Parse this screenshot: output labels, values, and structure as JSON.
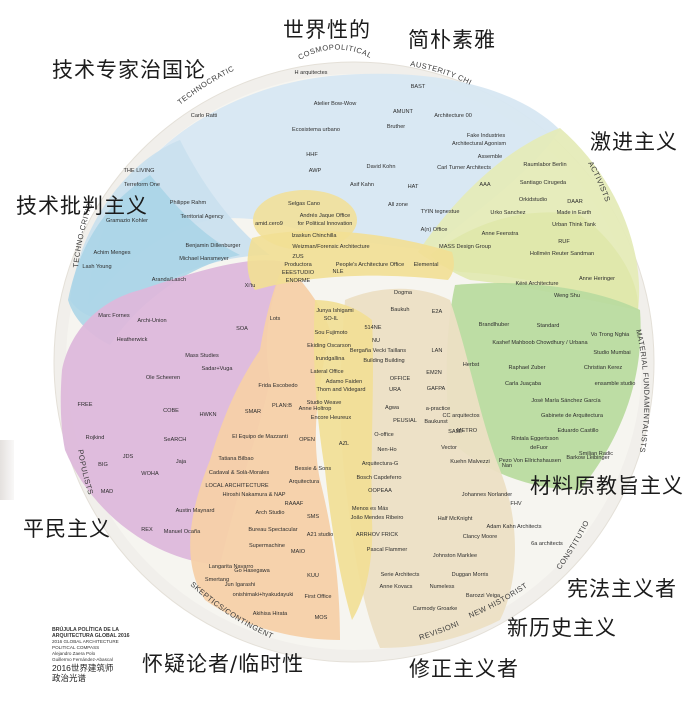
{
  "title_credit": {
    "lines": [
      "BRÚJULA POLÍTICA DE LA",
      "ARQUITECTURA GLOBAL 2016",
      "2016 GLOBAL ARCHITECTURE",
      "POLITICAL COMPASS",
      "Alejandro Zaera Polo",
      "Guillermo Fernández-Abascal"
    ],
    "cn_lines": [
      "2016世界建筑师",
      "政治光谱"
    ]
  },
  "overlay_labels": {
    "cosmopolitan": "世界性的",
    "austerity": "简朴素雅",
    "technocratic": "技术专家治国论",
    "activists": "激进主义",
    "techno_critical": "技术批判主义",
    "material": "材料原教旨主义",
    "populists": "平民主义",
    "constitutionalists": "宪法主义者",
    "new_historists": "新历史主义",
    "skeptics": "怀疑论者/临时性",
    "revisionists": "修正主义者"
  },
  "ring_labels": [
    {
      "key": "cosmo",
      "text": "COSMOPOLITICAL"
    },
    {
      "key": "aust",
      "text": "AUSTERITY CHIC"
    },
    {
      "key": "techno",
      "text": "TECHNOCRATIC"
    },
    {
      "key": "act",
      "text": "ACTIVISTS"
    },
    {
      "key": "tcrit",
      "text": "TECHNO-CRITICAL"
    },
    {
      "key": "matf",
      "text": "MATERIAL FUNDAMENTALISTS"
    },
    {
      "key": "pop",
      "text": "POPULISTS"
    },
    {
      "key": "const",
      "text": "CONSTITUTIONALISTS"
    },
    {
      "key": "newh",
      "text": "NEW HISTORISTS"
    },
    {
      "key": "rev",
      "text": "REVISIONISTS"
    },
    {
      "key": "skep",
      "text": "SKEPTICS/CONTINGENT"
    }
  ],
  "regions": {
    "cosmopolitan": {
      "color": "#d7e7f2"
    },
    "technocratic": {
      "color": "#c9e0ee"
    },
    "techno_critical": {
      "color": "#a8d4e6"
    },
    "activists": {
      "color": "#e5ebb8"
    },
    "material": {
      "color": "#b9db9f"
    },
    "populists": {
      "color": "#ddb8db"
    },
    "skeptics": {
      "color": "#f6d0a8"
    },
    "revisionists": {
      "color": "#ecdfc4"
    },
    "center": {
      "color": "#f2df94"
    },
    "disk": {
      "color": "#f4f4ef"
    }
  },
  "firms": [
    {
      "t": "H arquitectes"
    },
    {
      "t": "BAST"
    },
    {
      "t": "Atelier Bow-Wow"
    },
    {
      "t": "AMUNT"
    },
    {
      "t": "Carlo Ratti"
    },
    {
      "t": "Architecture 00"
    },
    {
      "t": "Bruther"
    },
    {
      "t": "Ecosistema urbano"
    },
    {
      "t": "Fake Industries"
    },
    {
      "t": "Architectural Agonism"
    },
    {
      "t": "Assemble"
    },
    {
      "t": "Raumlabor Berlin"
    },
    {
      "t": "HHF"
    },
    {
      "t": "David Kohn"
    },
    {
      "t": "Carl Turner Architects"
    },
    {
      "t": "AWP"
    },
    {
      "t": "Asif Kahn"
    },
    {
      "t": "HAT"
    },
    {
      "t": "AAA"
    },
    {
      "t": "Santiago Cirugeda"
    },
    {
      "t": "THE LIVING"
    },
    {
      "t": "Terreform One"
    },
    {
      "t": "Philippe Rahm"
    },
    {
      "t": "Gramazio Kohler"
    },
    {
      "t": "Territorial Agency"
    },
    {
      "t": "Selgas Cano"
    },
    {
      "t": "Andrés Jaque Office"
    },
    {
      "t": "for Political Innovation"
    },
    {
      "t": "Izaskun Chinchilla"
    },
    {
      "t": "amid.cero9"
    },
    {
      "t": "All zone"
    },
    {
      "t": "TYIN tegnestue"
    },
    {
      "t": "Orkidstudio"
    },
    {
      "t": "DAAR"
    },
    {
      "t": "Urko Sanchez"
    },
    {
      "t": "Made in Earth"
    },
    {
      "t": "Urban Think Tank"
    },
    {
      "t": "A(n) Office"
    },
    {
      "t": "Anne Feenstra"
    },
    {
      "t": "RUF"
    },
    {
      "t": "MASS Design Group"
    },
    {
      "t": "Hollmén Reuter Sandman"
    },
    {
      "t": "Achim Menges"
    },
    {
      "t": "Benjamin Dillenburger"
    },
    {
      "t": "Michael Hansmeyer"
    },
    {
      "t": "Lash Young"
    },
    {
      "t": "Aranda/Lasch"
    },
    {
      "t": "Weizman/Forensic Architecture"
    },
    {
      "t": "ZUS"
    },
    {
      "t": "Productora"
    },
    {
      "t": "EEESTUDIO"
    },
    {
      "t": "ENORME"
    },
    {
      "t": "People's Architecture Office"
    },
    {
      "t": "NLE"
    },
    {
      "t": "Elemental"
    },
    {
      "t": "Marc Fornes"
    },
    {
      "t": "Xi'tu"
    },
    {
      "t": "Lots"
    },
    {
      "t": "Archi-Union"
    },
    {
      "t": "SOA"
    },
    {
      "t": "Heatherwick"
    },
    {
      "t": "Junya Ishigami"
    },
    {
      "t": "Dogma"
    },
    {
      "t": "Baukuh"
    },
    {
      "t": "E2A"
    },
    {
      "t": "Anne Holtrop"
    },
    {
      "t": "Weng Shu"
    },
    {
      "t": "Kéré Architecture"
    },
    {
      "t": "Anne Heringer"
    },
    {
      "t": "Brandlhuber"
    },
    {
      "t": "Standard"
    },
    {
      "t": "Vo Trong Nghia"
    },
    {
      "t": "Kashef Mahboob Chowdhury / Urbana"
    },
    {
      "t": "Studio Mumbai"
    },
    {
      "t": "Herbst"
    },
    {
      "t": "Raphael Zuber"
    },
    {
      "t": "Christian Kerez"
    },
    {
      "t": "Carla Juaçaba"
    },
    {
      "t": "ensamble studio"
    },
    {
      "t": "José María Sánchez García"
    },
    {
      "t": "Gabinete de Arquitectura"
    },
    {
      "t": "Eduardo Castillo"
    },
    {
      "t": "Barkow Leibinger"
    },
    {
      "t": "Pezo Von Ellrichshausen"
    },
    {
      "t": "Smiljan Radic"
    },
    {
      "t": "METRO"
    },
    {
      "t": "Rintala Eggertsson"
    },
    {
      "t": "deFuor"
    },
    {
      "t": "Mass Studies"
    },
    {
      "t": "Sadar+Vuga"
    },
    {
      "t": "Ole Scheeren"
    },
    {
      "t": "Frida Escobedo"
    },
    {
      "t": "FREE"
    },
    {
      "t": "COBE"
    },
    {
      "t": "HWKN"
    },
    {
      "t": "SMAR"
    },
    {
      "t": "PLAN:B"
    },
    {
      "t": "Rojkind"
    },
    {
      "t": "SeARCH"
    },
    {
      "t": "JDS"
    },
    {
      "t": "Jaja"
    },
    {
      "t": "BIG"
    },
    {
      "t": "WOHA"
    },
    {
      "t": "MAD"
    },
    {
      "t": "REX"
    },
    {
      "t": "El Equipo de Mazzanti"
    },
    {
      "t": "Tatiana Bilbao"
    },
    {
      "t": "Cadaval & Solà-Morales"
    },
    {
      "t": "LOCAL ARCHITECTURE"
    },
    {
      "t": "Hiroshi Nakamura & NAP"
    },
    {
      "t": "Austin Maynard"
    },
    {
      "t": "Manuel Ocaña"
    },
    {
      "t": "Arch Studio"
    },
    {
      "t": "Bureau Spectacular"
    },
    {
      "t": "Supermachine"
    },
    {
      "t": "MAIO"
    },
    {
      "t": "Langarita Navarro"
    },
    {
      "t": "Go Hasegawa"
    },
    {
      "t": "Smertang"
    },
    {
      "t": "Jun Igarashi"
    },
    {
      "t": "onishimaki+hyakudayuki"
    },
    {
      "t": "KUU"
    },
    {
      "t": "First Office"
    },
    {
      "t": "Akihisa Hirata"
    },
    {
      "t": "MOS"
    },
    {
      "t": "SO-IL"
    },
    {
      "t": "Sou Fujimoto"
    },
    {
      "t": "Ekiding Oscarson"
    },
    {
      "t": "Irundgallina"
    },
    {
      "t": "Lateral Office"
    },
    {
      "t": "Adamo Faiden"
    },
    {
      "t": "Thom and Videgard"
    },
    {
      "t": "Studio Weave"
    },
    {
      "t": "Encore Heureux"
    },
    {
      "t": "OPEN"
    },
    {
      "t": "AZL"
    },
    {
      "t": "Bessie & Sons"
    },
    {
      "t": "Arquitectura"
    },
    {
      "t": "RAAAF"
    },
    {
      "t": "SMS"
    },
    {
      "t": "A21 studio"
    },
    {
      "t": "514NE"
    },
    {
      "t": "NU"
    },
    {
      "t": "Bergaña Vecki Taillans"
    },
    {
      "t": "Building Building"
    },
    {
      "t": "LAN"
    },
    {
      "t": "OFFICE"
    },
    {
      "t": "URA"
    },
    {
      "t": "Agwa"
    },
    {
      "t": "PEUSIAL"
    },
    {
      "t": "O-office"
    },
    {
      "t": "Nen-Ho"
    },
    {
      "t": "Arquitectura-G"
    },
    {
      "t": "Bosch Capdeferro"
    },
    {
      "t": "OOPEAA"
    },
    {
      "t": "Menos es Más"
    },
    {
      "t": "João Mendes Ribeiro"
    },
    {
      "t": "ARRHOV FRICK"
    },
    {
      "t": "Pascal Flammer"
    },
    {
      "t": "Serie Architects"
    },
    {
      "t": "Anne Kovacs"
    },
    {
      "t": "EM2N"
    },
    {
      "t": "GAFPA"
    },
    {
      "t": "a-practice"
    },
    {
      "t": "Baukunst"
    },
    {
      "t": "SAMI"
    },
    {
      "t": "CC arquitectos"
    },
    {
      "t": "Vector"
    },
    {
      "t": "Kuehn Malvezzi"
    },
    {
      "t": "Nan"
    },
    {
      "t": "Johannes Norlander"
    },
    {
      "t": "FHV"
    },
    {
      "t": "Adam Kahn Architects"
    },
    {
      "t": "Half McKnight"
    },
    {
      "t": "Clancy Moore"
    },
    {
      "t": "6a architects"
    },
    {
      "t": "Johnston Marklee"
    },
    {
      "t": "Duggan Morris"
    },
    {
      "t": "Numeless"
    },
    {
      "t": "Barozzi Veiga"
    },
    {
      "t": "Carmody Groarke"
    }
  ]
}
